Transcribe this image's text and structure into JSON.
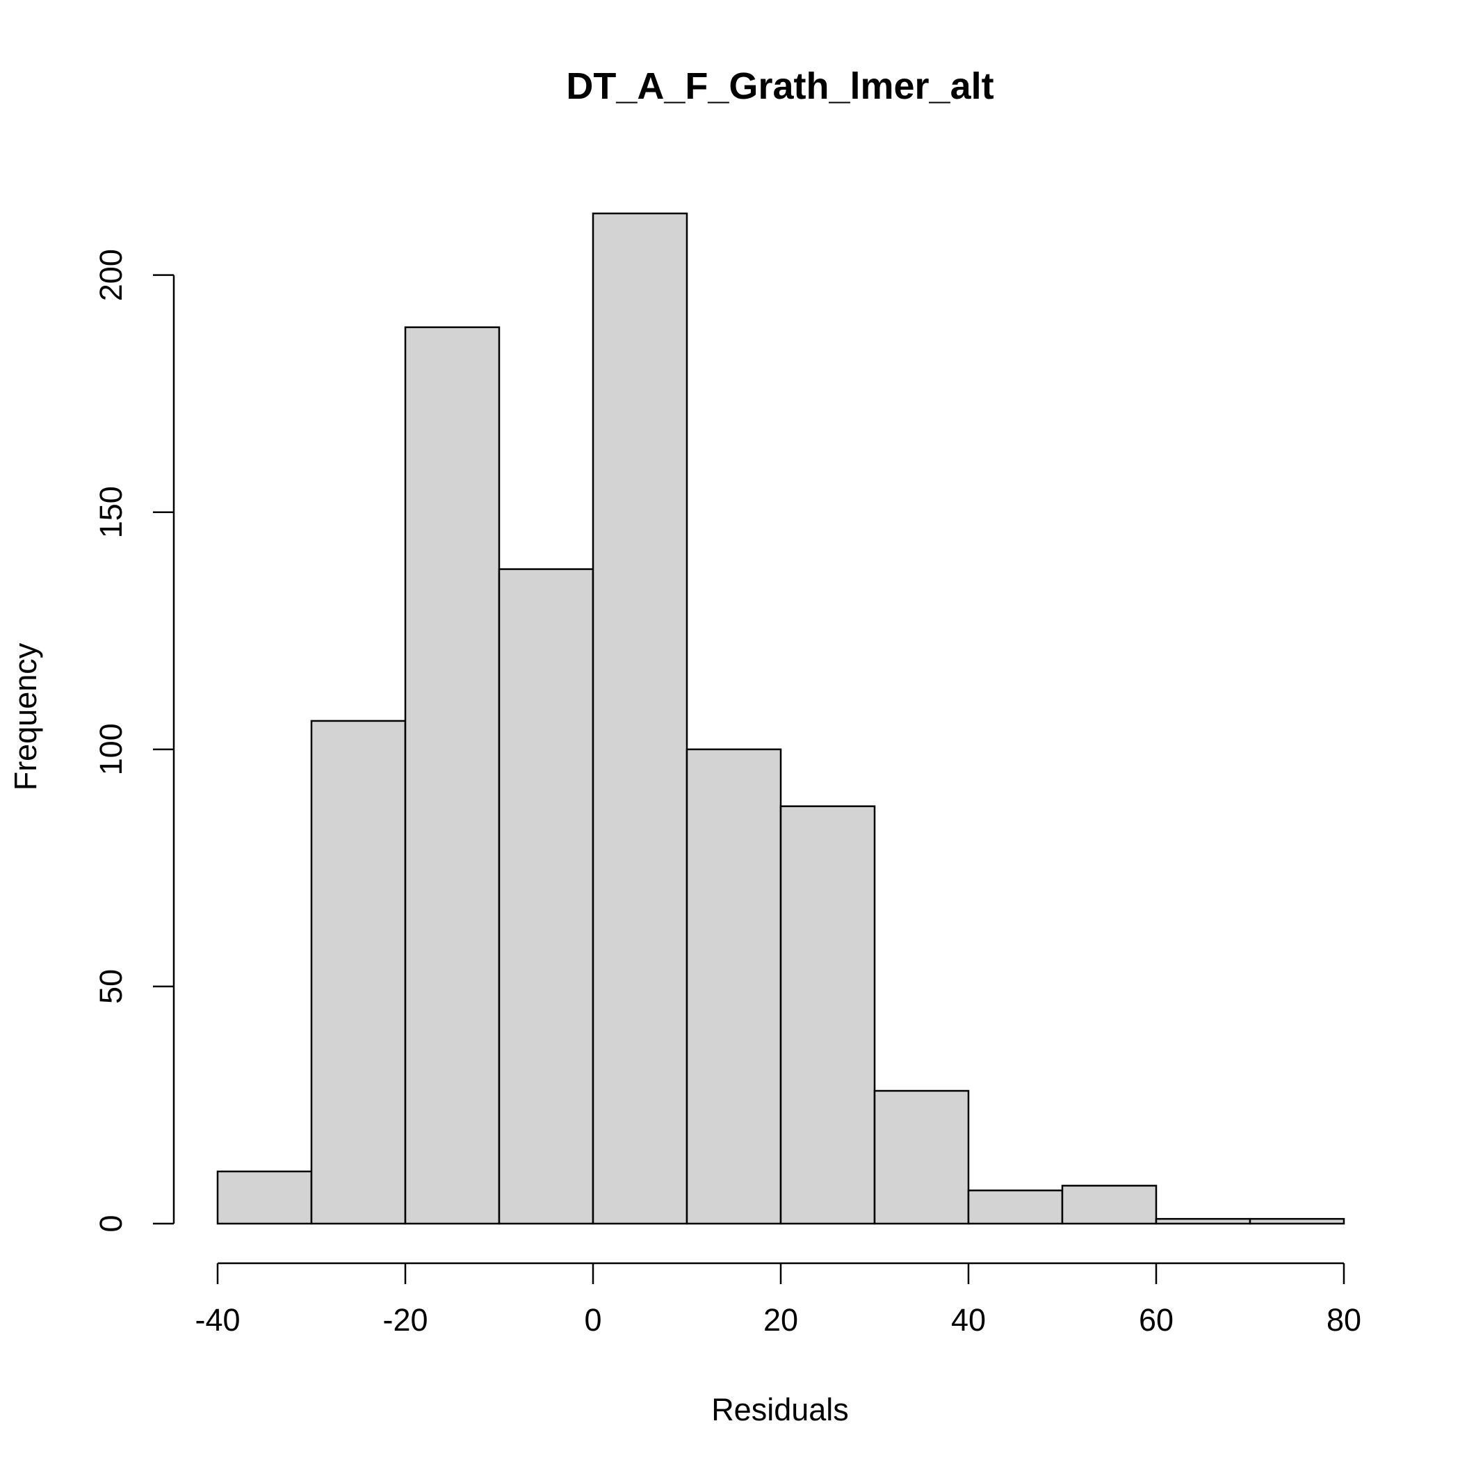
{
  "chart_data": {
    "type": "bar",
    "title": "DT_A_F_Grath_lmer_alt",
    "xlabel": "Residuals",
    "ylabel": "Frequency",
    "bins": [
      {
        "start": -40,
        "end": -30,
        "count": 11
      },
      {
        "start": -30,
        "end": -20,
        "count": 106
      },
      {
        "start": -20,
        "end": -10,
        "count": 189
      },
      {
        "start": -10,
        "end": 0,
        "count": 138
      },
      {
        "start": 0,
        "end": 10,
        "count": 213
      },
      {
        "start": 10,
        "end": 20,
        "count": 100
      },
      {
        "start": 20,
        "end": 30,
        "count": 88
      },
      {
        "start": 30,
        "end": 40,
        "count": 28
      },
      {
        "start": 40,
        "end": 50,
        "count": 7
      },
      {
        "start": 50,
        "end": 60,
        "count": 8
      },
      {
        "start": 60,
        "end": 70,
        "count": 1
      },
      {
        "start": 70,
        "end": 80,
        "count": 1
      }
    ],
    "xlim": [
      -40,
      80
    ],
    "ylim": [
      0,
      213
    ],
    "x_ticks": [
      -40,
      -20,
      0,
      20,
      40,
      60,
      80
    ],
    "y_ticks": [
      0,
      50,
      100,
      150,
      200
    ],
    "bar_color": "#d3d3d3",
    "grid": false,
    "legend": "none"
  }
}
